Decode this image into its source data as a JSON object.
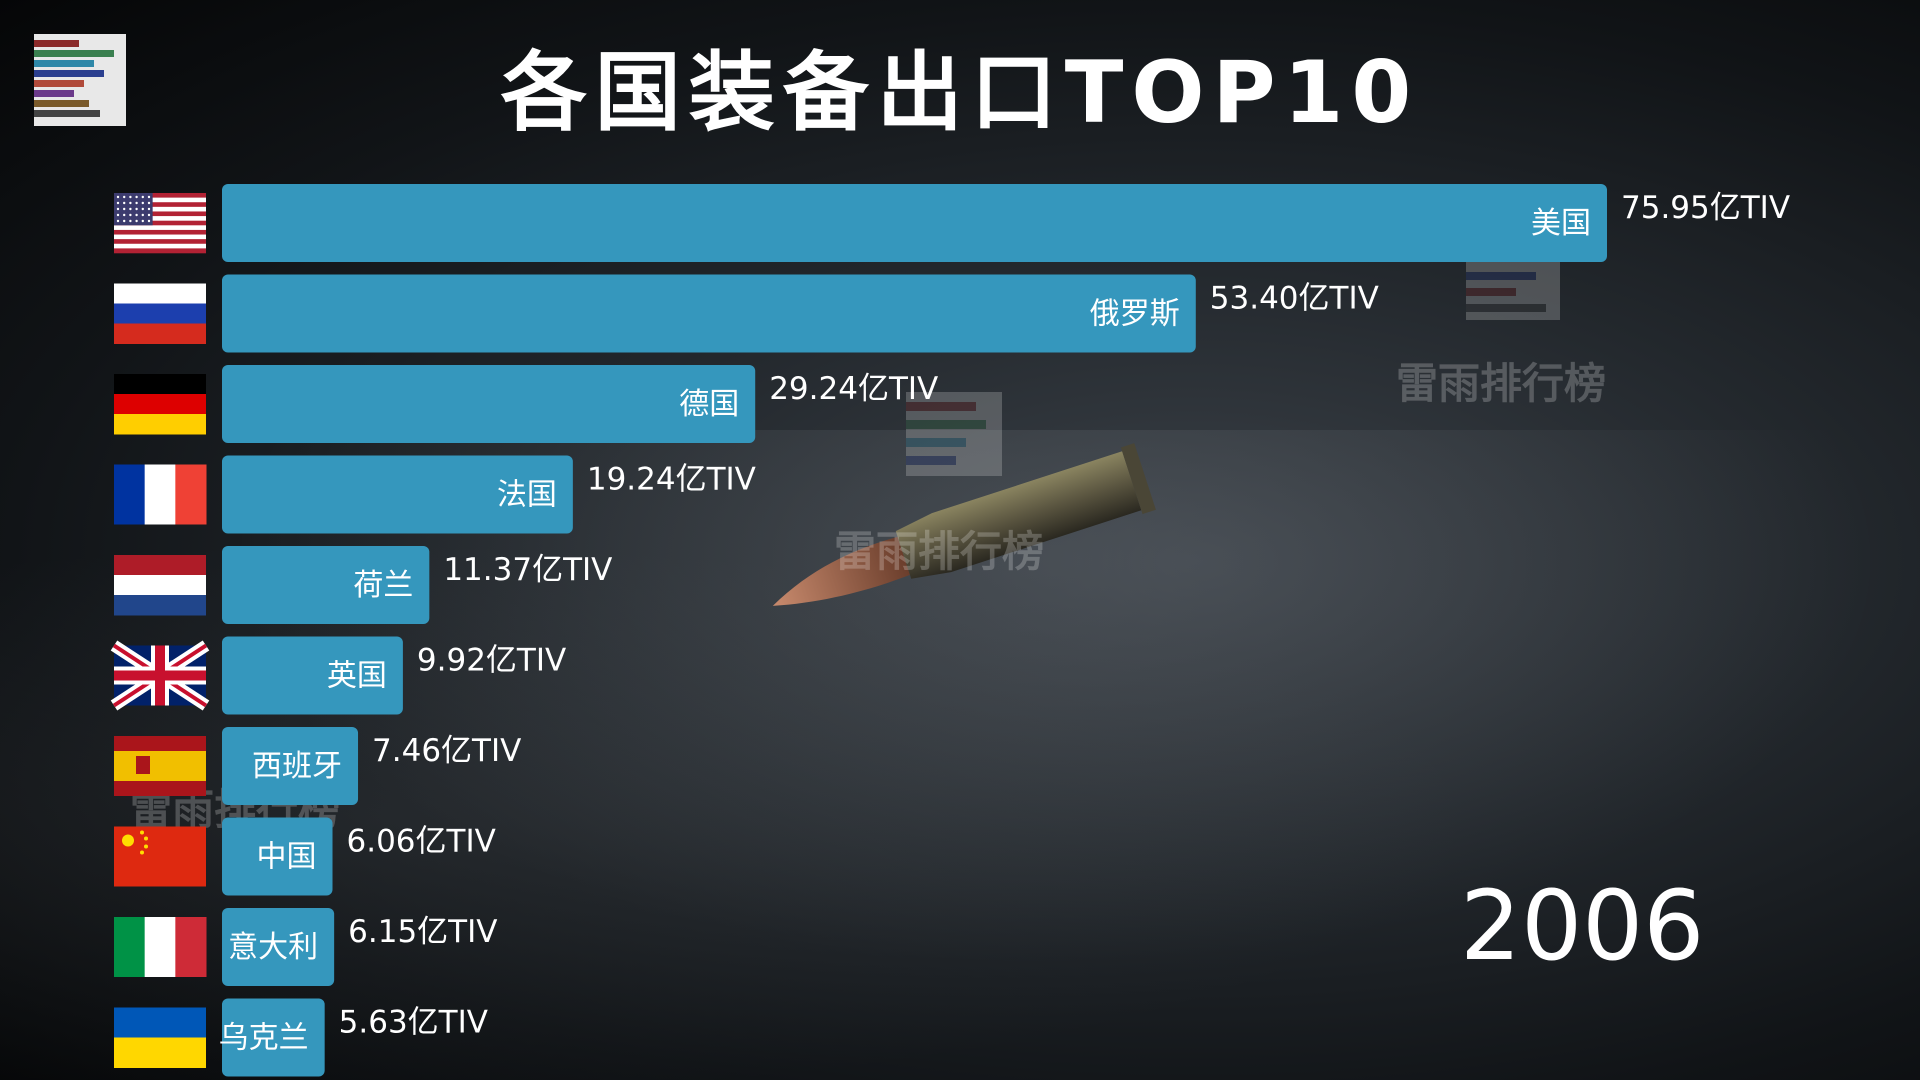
{
  "title": "各国装备出口TOP10",
  "year": "2006",
  "watermark_text": "雷雨排行榜",
  "colors": {
    "bar": "#3597bd",
    "label": "#ffffff"
  },
  "chart_data": {
    "type": "bar",
    "orientation": "horizontal",
    "title": "各国装备出口TOP10",
    "unit": "亿TIV",
    "categories": [
      "美国",
      "俄罗斯",
      "德国",
      "法国",
      "荷兰",
      "英国",
      "西班牙",
      "中国",
      "意大利",
      "乌克兰"
    ],
    "values": [
      75.95,
      53.4,
      29.24,
      19.24,
      11.37,
      9.92,
      7.46,
      6.06,
      6.15,
      5.63
    ],
    "value_labels": [
      "75.95亿TIV",
      "53.40亿TIV",
      "29.24亿TIV",
      "19.24亿TIV",
      "11.37亿TIV",
      "9.92亿TIV",
      "7.46亿TIV",
      "6.06亿TIV",
      "6.15亿TIV",
      "5.63亿TIV"
    ],
    "flags": [
      "us-flag",
      "russia-flag",
      "germany-flag",
      "france-flag",
      "netherlands-flag",
      "uk-flag",
      "spain-flag",
      "china-flag",
      "italy-flag",
      "ukraine-flag"
    ],
    "legend": "none",
    "grid": false
  }
}
